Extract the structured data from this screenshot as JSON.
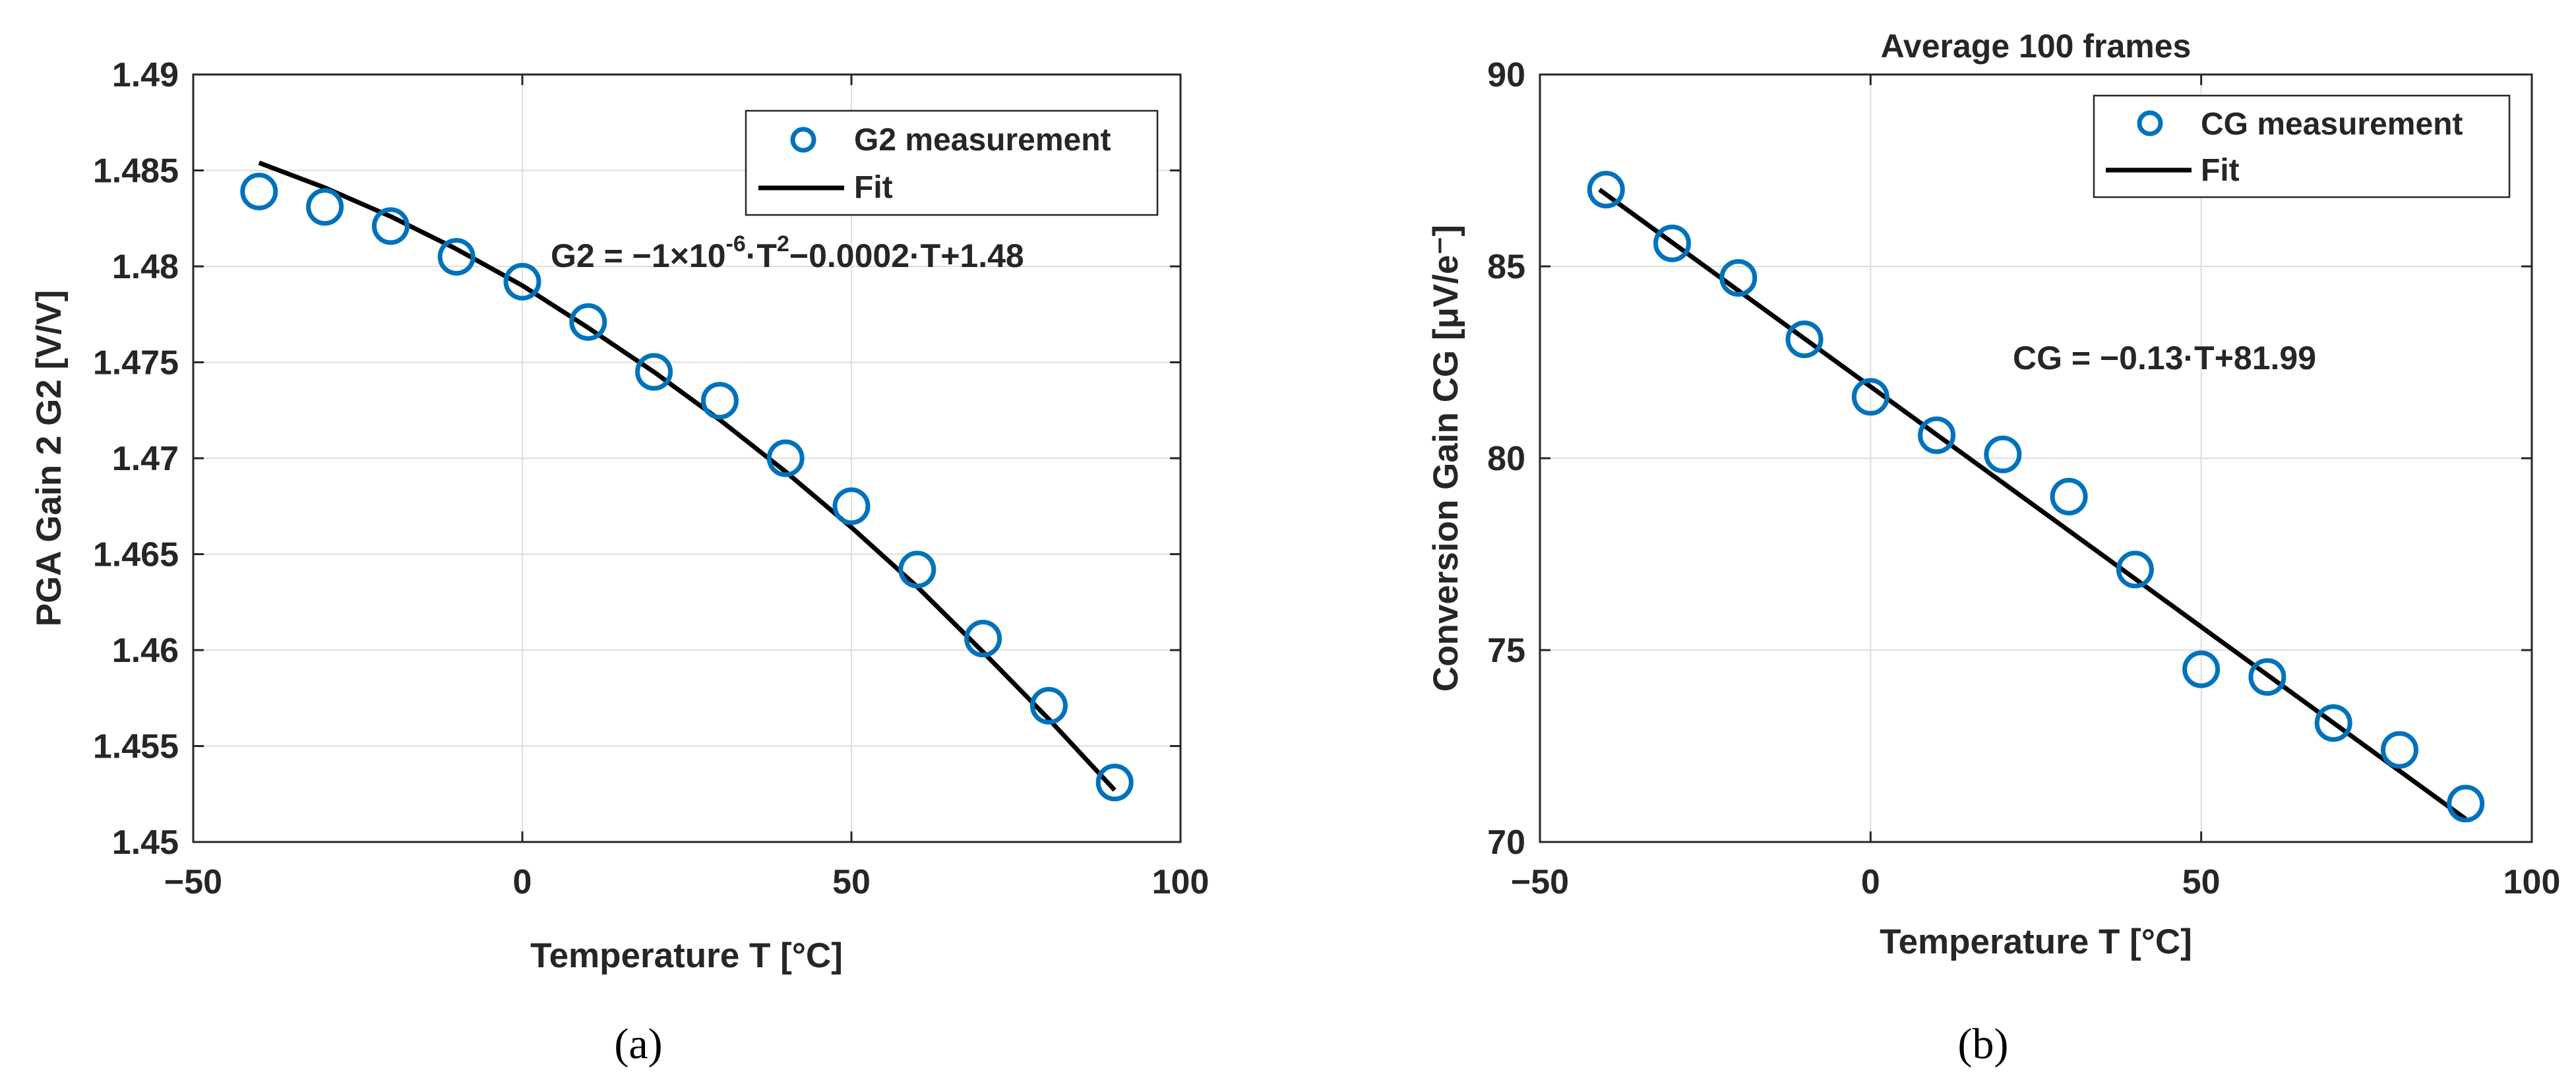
{
  "chart_data": [
    {
      "type": "scatter",
      "panel_label": "a",
      "title": "",
      "xlabel": "Temperature T [°C]",
      "ylabel": "PGA Gain 2 G2 [V/V]",
      "xlim": [
        -50,
        100
      ],
      "ylim": [
        1.45,
        1.49
      ],
      "xticks": [
        -50,
        0,
        50,
        100
      ],
      "xtick_labels": [
        "−50",
        "0",
        "50",
        "100"
      ],
      "yticks": [
        1.45,
        1.455,
        1.46,
        1.465,
        1.47,
        1.475,
        1.48,
        1.485,
        1.49
      ],
      "ytick_labels": [
        "1.45",
        "1.455",
        "1.46",
        "1.465",
        "1.47",
        "1.475",
        "1.48",
        "1.485",
        "1.49"
      ],
      "xgrid": [
        0,
        50
      ],
      "grid": true,
      "legend_position": "top-right",
      "series": [
        {
          "name": "G2 measurement",
          "kind": "markers",
          "color": "#0072BD",
          "x": [
            -40,
            -30,
            -20,
            -10,
            0,
            10,
            20,
            30,
            40,
            50,
            60,
            70,
            80,
            90
          ],
          "y": [
            1.4839,
            1.4831,
            1.4821,
            1.4805,
            1.4792,
            1.4771,
            1.4745,
            1.473,
            1.47,
            1.4675,
            1.4642,
            1.4606,
            1.4571,
            1.4531
          ]
        },
        {
          "name": "Fit",
          "kind": "line",
          "color": "#000000",
          "x": [
            -40,
            -30,
            -20,
            -10,
            0,
            10,
            20,
            30,
            40,
            50,
            60,
            70,
            80,
            90
          ],
          "y": [
            1.4854,
            1.4841,
            1.4826,
            1.4809,
            1.479,
            1.4768,
            1.4745,
            1.472,
            1.4693,
            1.4664,
            1.4633,
            1.4599,
            1.4564,
            1.4527
          ]
        }
      ],
      "annotation": {
        "main": "G2 = −1×10",
        "exp1": "-6",
        "mid": "·T",
        "exp2": "2",
        "tail": "−0.0002·T+1.48"
      }
    },
    {
      "type": "scatter",
      "panel_label": "b",
      "title": "Average 100 frames",
      "xlabel": "Temperature T [°C]",
      "ylabel": "Conversion Gain CG [μV/e⁻]",
      "xlim": [
        -50,
        100
      ],
      "ylim": [
        70,
        90
      ],
      "xticks": [
        -50,
        0,
        50,
        100
      ],
      "xtick_labels": [
        "−50",
        "0",
        "50",
        "100"
      ],
      "yticks": [
        70,
        75,
        80,
        85,
        90
      ],
      "ytick_labels": [
        "70",
        "75",
        "80",
        "85",
        "90"
      ],
      "xgrid": [
        0,
        50
      ],
      "grid": true,
      "legend_position": "top-right",
      "series": [
        {
          "name": "CG measurement",
          "kind": "markers",
          "color": "#0072BD",
          "x": [
            -40,
            -30,
            -20,
            -10,
            0,
            10,
            20,
            30,
            40,
            50,
            60,
            70,
            80,
            90
          ],
          "y": [
            87.0,
            85.6,
            84.7,
            83.1,
            81.6,
            80.6,
            80.1,
            79.0,
            77.1,
            74.5,
            74.3,
            73.1,
            72.4,
            71.0
          ]
        },
        {
          "name": "Fit",
          "kind": "line",
          "color": "#000000",
          "x": [
            -41,
            90
          ],
          "y": [
            87.0,
            70.6
          ]
        }
      ],
      "annotation": {
        "main": "CG = −0.13·T+81.99"
      }
    }
  ],
  "captions": [
    "(a)",
    "(b)"
  ]
}
